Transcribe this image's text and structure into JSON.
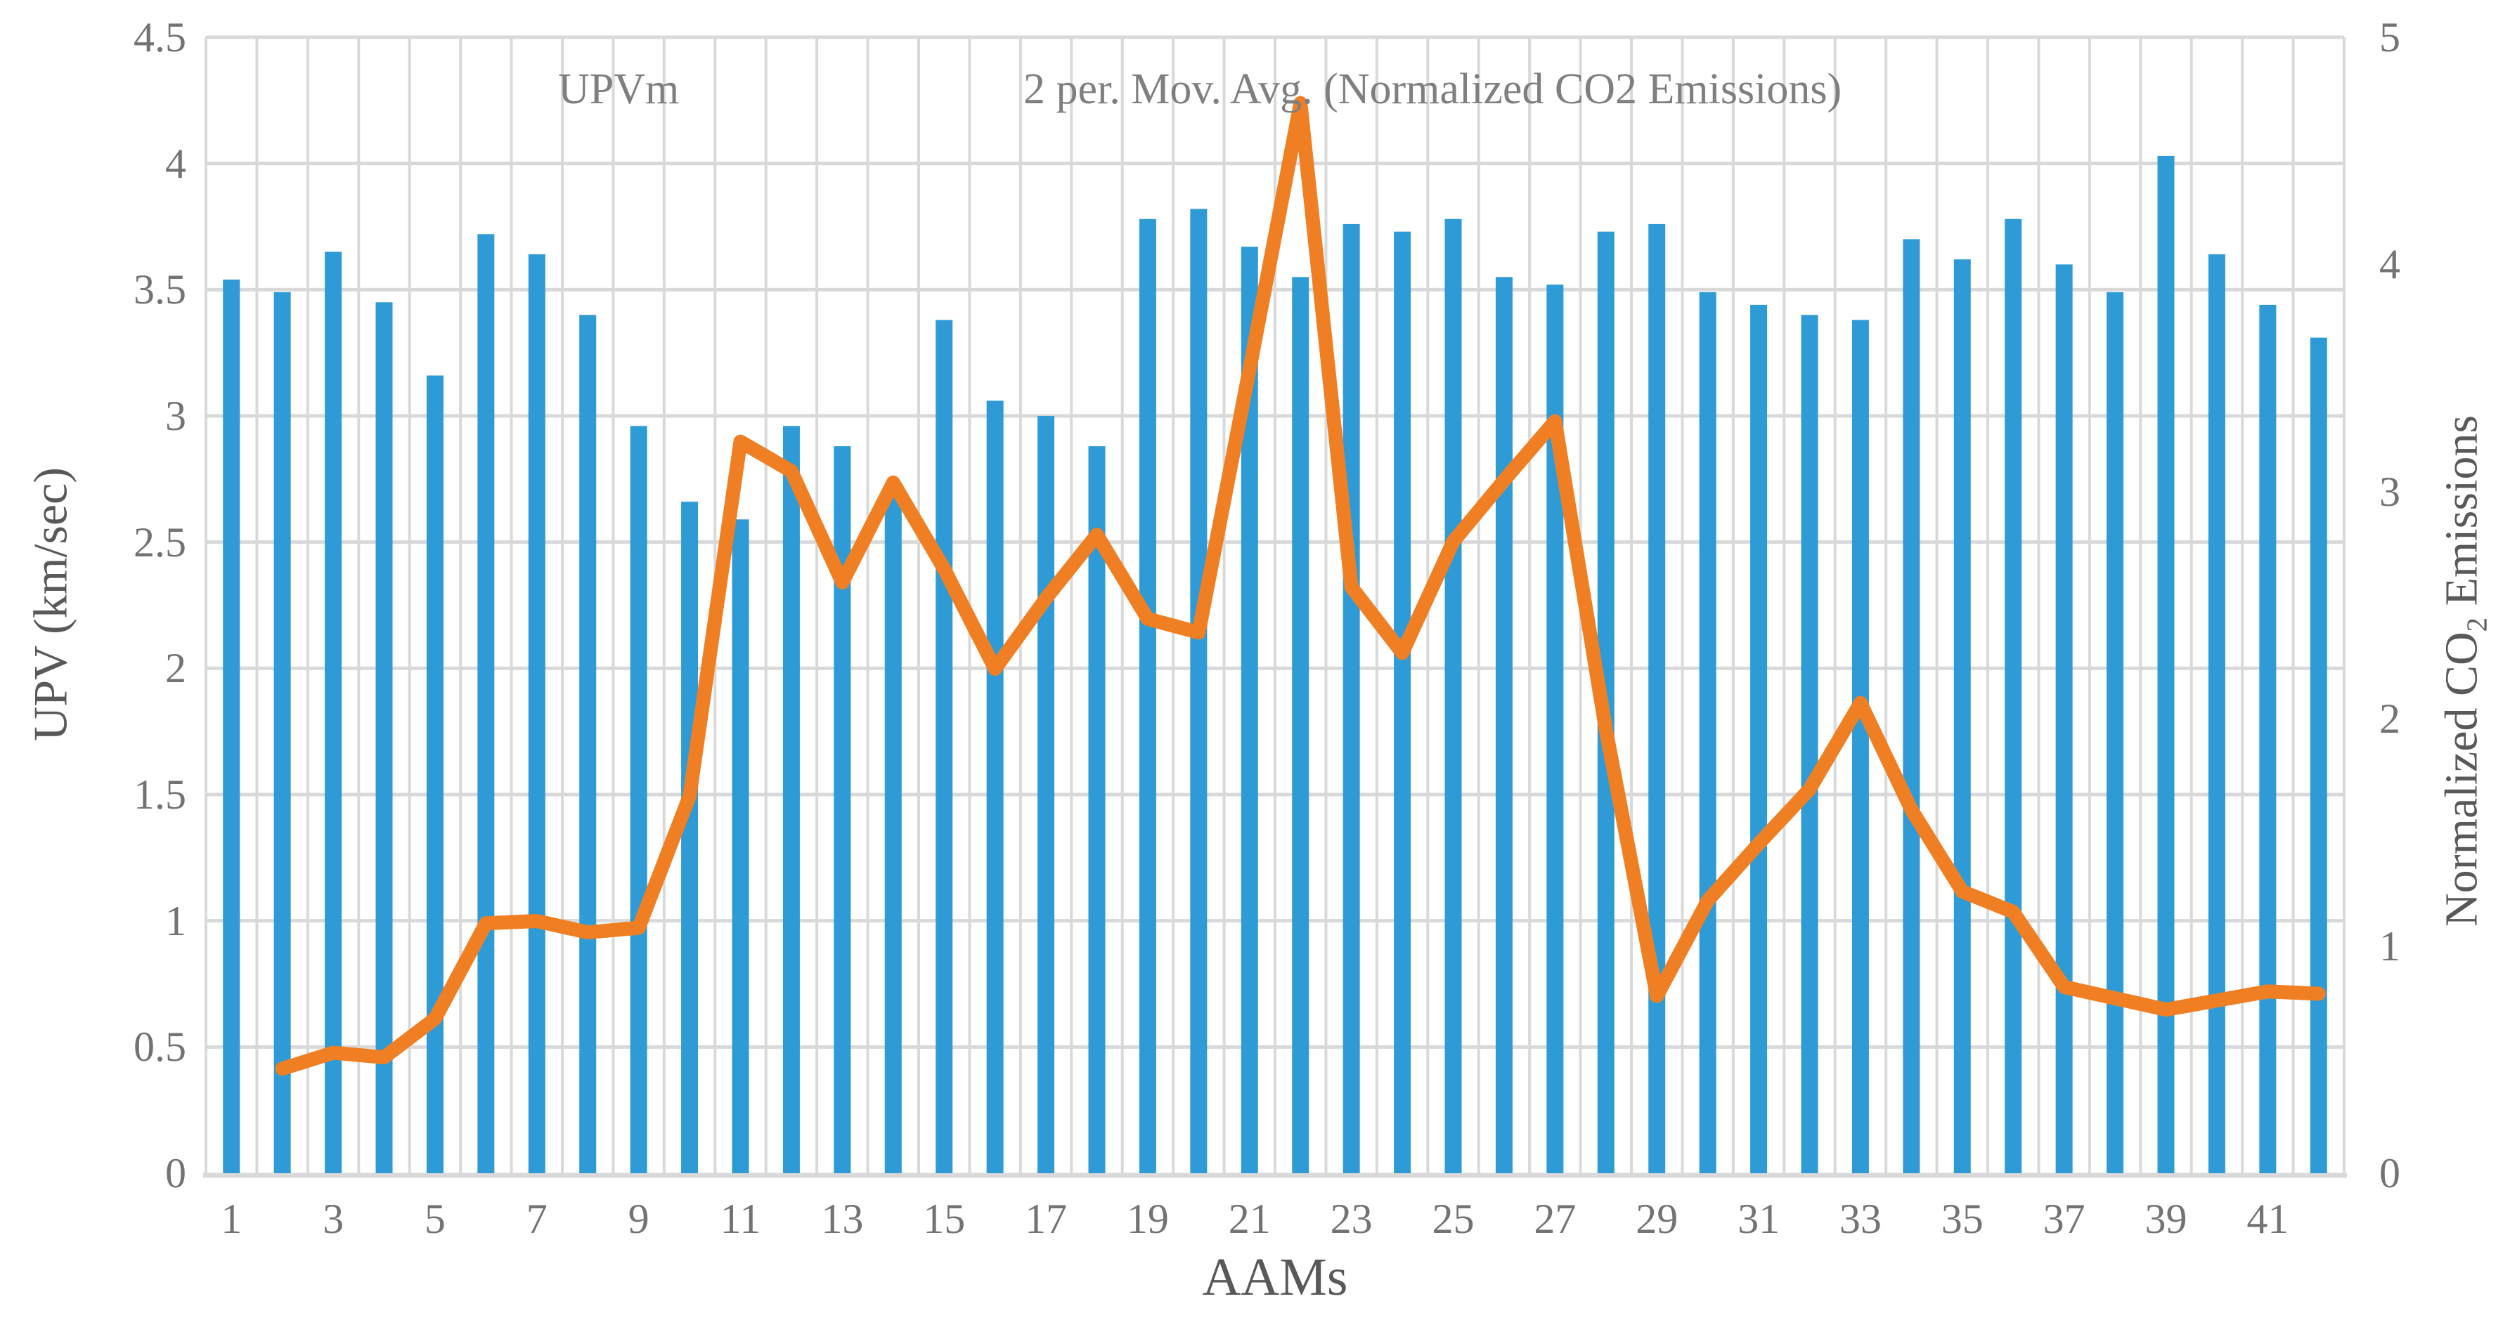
{
  "chart_data": {
    "type": "bar",
    "subtype": "combo-bar-line",
    "categories": [
      1,
      2,
      3,
      4,
      5,
      6,
      7,
      8,
      9,
      10,
      11,
      12,
      13,
      14,
      15,
      16,
      17,
      18,
      19,
      20,
      21,
      22,
      23,
      24,
      25,
      26,
      27,
      28,
      29,
      30,
      31,
      32,
      33,
      34,
      35,
      36,
      37,
      38,
      39,
      40,
      41,
      42
    ],
    "x_tick_labels": [
      "1",
      "3",
      "5",
      "7",
      "9",
      "11",
      "13",
      "15",
      "17",
      "19",
      "21",
      "23",
      "25",
      "27",
      "29",
      "31",
      "33",
      "35",
      "37",
      "39",
      "41"
    ],
    "series": [
      {
        "name": "UPVm",
        "type": "bar",
        "axis": "left",
        "color": "#2e9bd6",
        "values": [
          3.54,
          3.49,
          3.65,
          3.45,
          3.16,
          3.72,
          3.64,
          3.4,
          2.96,
          2.66,
          2.59,
          2.96,
          2.88,
          2.71,
          3.38,
          3.06,
          3.0,
          2.88,
          3.78,
          3.82,
          3.67,
          3.55,
          3.76,
          3.73,
          3.78,
          3.55,
          3.52,
          3.73,
          3.76,
          3.49,
          3.44,
          3.4,
          3.38,
          3.7,
          3.62,
          3.78,
          3.6,
          3.49,
          4.03,
          3.64,
          3.44,
          3.31
        ]
      },
      {
        "name": "2 per. Mov. Avg. (Normalized CO2 Emissions)",
        "type": "line",
        "axis": "right",
        "color": "#f07f23",
        "values": [
          null,
          0.46,
          0.53,
          0.51,
          0.68,
          1.1,
          1.11,
          1.06,
          1.08,
          1.66,
          3.22,
          3.09,
          2.6,
          3.04,
          2.66,
          2.22,
          2.53,
          2.81,
          2.44,
          2.38,
          3.54,
          4.71,
          2.58,
          2.29,
          2.78,
          3.05,
          3.31,
          1.95,
          0.78,
          1.2,
          1.45,
          1.69,
          2.07,
          1.6,
          1.24,
          1.15,
          0.82,
          0.77,
          0.72,
          0.76,
          0.8,
          0.79
        ]
      }
    ],
    "xlabel": "AAMs",
    "ylabel_left": "UPV (km/sec)",
    "ylabel_right_pre": "Normalized CO",
    "ylabel_right_sub": "2",
    "ylabel_right_post": " Emissions",
    "left_axis": {
      "min": 0,
      "max": 4.5,
      "step": 0.5,
      "tick_labels": [
        "0",
        "0.5",
        "1",
        "1.5",
        "2",
        "2.5",
        "3",
        "3.5",
        "4",
        "4.5"
      ]
    },
    "right_axis": {
      "min": 0,
      "max": 5,
      "step": 1,
      "tick_labels": [
        "0",
        "1",
        "2",
        "3",
        "4",
        "5"
      ]
    },
    "grid": {
      "horizontal": true,
      "vertical": true,
      "color": "#d9d9d9"
    },
    "legend_position": "top-center"
  },
  "legend": {
    "bar_label": "UPVm",
    "line_label": "2 per. Mov. Avg. (Normalized CO2 Emissions)"
  },
  "colors": {
    "bar": "#2e9bd6",
    "line": "#f07f23",
    "gridline": "#d9d9d9",
    "tick_text": "#737373",
    "title_text": "#595959"
  }
}
